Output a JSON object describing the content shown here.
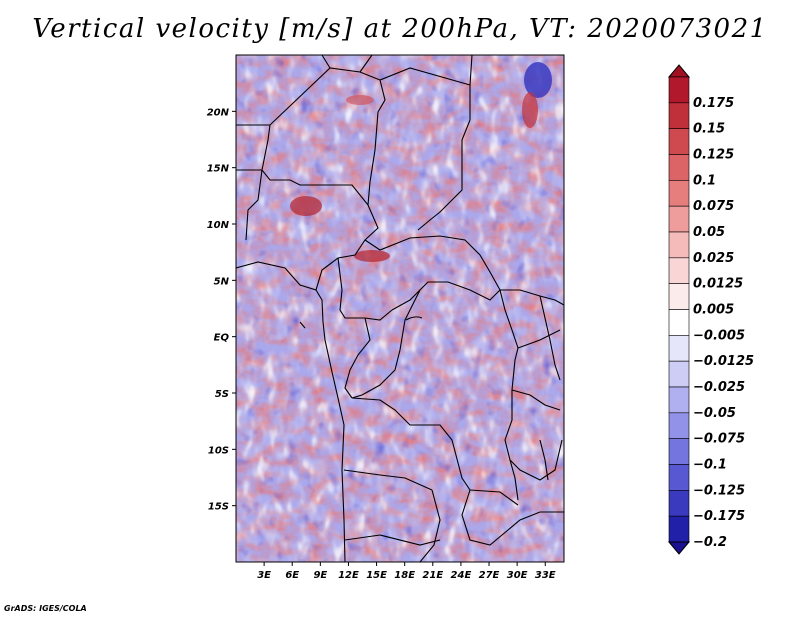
{
  "title": "Vertical velocity [m/s] at 200hPa, VT: 2020073021",
  "credit": "GrADS: IGES/COLA",
  "map": {
    "lon_range": [
      0,
      35
    ],
    "lat_range": [
      -20,
      25
    ],
    "lat_ticks": [
      {
        "value": 20,
        "label": "20N"
      },
      {
        "value": 15,
        "label": "15N"
      },
      {
        "value": 10,
        "label": "10N"
      },
      {
        "value": 5,
        "label": "5N"
      },
      {
        "value": 0,
        "label": "EQ"
      },
      {
        "value": -5,
        "label": "5S"
      },
      {
        "value": -10,
        "label": "10S"
      },
      {
        "value": -15,
        "label": "15S"
      }
    ],
    "lon_ticks": [
      {
        "value": 3,
        "label": "3E"
      },
      {
        "value": 6,
        "label": "6E"
      },
      {
        "value": 9,
        "label": "9E"
      },
      {
        "value": 12,
        "label": "12E"
      },
      {
        "value": 15,
        "label": "15E"
      },
      {
        "value": 18,
        "label": "18E"
      },
      {
        "value": 21,
        "label": "21E"
      },
      {
        "value": 24,
        "label": "24E"
      },
      {
        "value": 27,
        "label": "27E"
      },
      {
        "value": 30,
        "label": "30E"
      },
      {
        "value": 33,
        "label": "33E"
      }
    ]
  },
  "colorbar": {
    "levels": [
      {
        "label": "0.175",
        "color": "#b2182b"
      },
      {
        "label": "0.15",
        "color": "#c0303b"
      },
      {
        "label": "0.125",
        "color": "#cf4a4f"
      },
      {
        "label": "0.1",
        "color": "#dc6366"
      },
      {
        "label": "0.075",
        "color": "#e67e7e"
      },
      {
        "label": "0.05",
        "color": "#ef9c9c"
      },
      {
        "label": "0.025",
        "color": "#f5baba"
      },
      {
        "label": "0.0125",
        "color": "#f9d5d5"
      },
      {
        "label": "0.005",
        "color": "#fcebeb"
      },
      {
        "label": "−0.005",
        "color": "#ffffff"
      },
      {
        "label": "−0.0125",
        "color": "#e6e6fb"
      },
      {
        "label": "−0.025",
        "color": "#cdcdf6"
      },
      {
        "label": "−0.05",
        "color": "#b0b0f0"
      },
      {
        "label": "−0.075",
        "color": "#9292e8"
      },
      {
        "label": "−0.1",
        "color": "#7575df"
      },
      {
        "label": "−0.125",
        "color": "#5858d2"
      },
      {
        "label": "−0.175",
        "color": "#3a3abf"
      },
      {
        "label": "−0.2",
        "color": "#2020a8"
      }
    ],
    "top_triangle_color": "#a01020",
    "bottom_triangle_color": "#1a1090"
  }
}
